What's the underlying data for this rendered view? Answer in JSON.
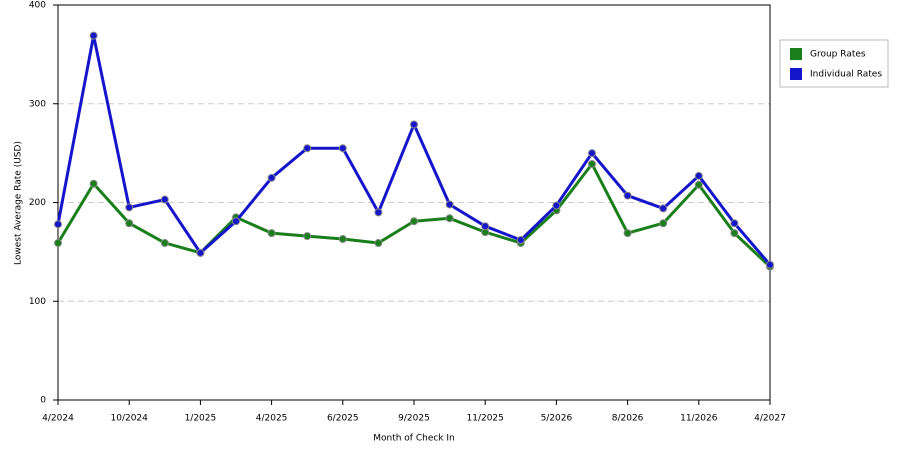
{
  "chart_data": {
    "type": "line",
    "x_label": "Month of Check In",
    "y_label": "Lowest Average Rate (USD)",
    "categories": [
      "4/2024",
      null,
      "10/2024",
      null,
      "1/2025",
      null,
      "4/2025",
      null,
      "6/2025",
      null,
      "9/2025",
      null,
      "11/2025",
      null,
      "5/2026",
      null,
      "8/2026",
      null,
      "11/2026",
      null,
      "4/2027"
    ],
    "series": [
      {
        "name": "Group Rates",
        "color": "#1a7f1a",
        "values": [
          159,
          219,
          179,
          159,
          149,
          185,
          169,
          166,
          163,
          159,
          181,
          184,
          170,
          159,
          192,
          239,
          169,
          179,
          218,
          169,
          135
        ]
      },
      {
        "name": "Individual Rates",
        "color": "#1515cc",
        "values": [
          178,
          369,
          195,
          203,
          149,
          181,
          225,
          255,
          255,
          190,
          279,
          198,
          176,
          162,
          197,
          250,
          207,
          194,
          227,
          179,
          137
        ]
      }
    ],
    "ylim": [
      0,
      400
    ],
    "yticks": [
      0,
      100,
      200,
      300,
      400
    ],
    "grid": true
  }
}
